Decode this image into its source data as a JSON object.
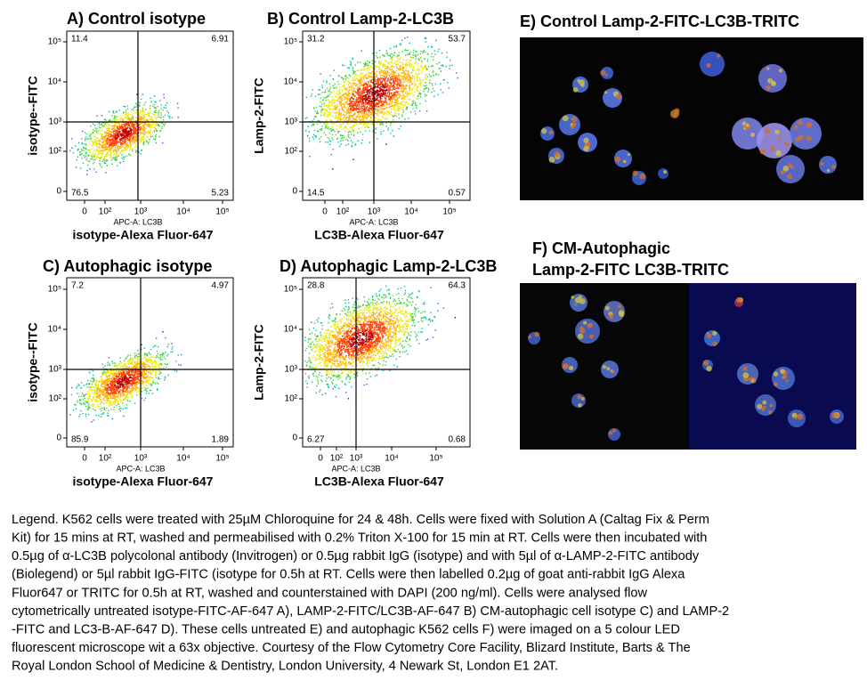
{
  "panels": [
    {
      "title": "A) Control isotype",
      "y_label": "isotype--FITC",
      "x_sublabel": "APC-A: LC3B",
      "x_label": "isotype-Alexa Fluor-647",
      "quadrants": [
        11.4,
        6.91,
        76.5,
        5.23
      ],
      "yticks": [
        "10⁵",
        "10⁴",
        "10³",
        "10²",
        "0"
      ],
      "xticks": [
        "0",
        "10²",
        "10³",
        "10⁴",
        "10⁵"
      ]
    },
    {
      "title": "B) Control  Lamp-2-LC3B",
      "y_label": "Lamp-2-FITC",
      "x_sublabel": "APC-A: LC3B",
      "x_label": "LC3B-Alexa Fluor-647",
      "quadrants": [
        31.2,
        53.7,
        14.5,
        0.57
      ],
      "yticks": [
        "10⁵",
        "10⁴",
        "10³",
        "10²",
        "0"
      ],
      "xticks": [
        "0",
        "10²",
        "10³",
        "10⁴",
        "10⁵"
      ]
    },
    {
      "title": "C) Autophagic isotype",
      "y_label": "isotype--FITC",
      "x_sublabel": "APC-A: LC3B",
      "x_label": "isotype-Alexa Fluor-647",
      "quadrants": [
        7.2,
        4.97,
        85.9,
        1.89
      ],
      "yticks": [
        "10⁵",
        "10⁴",
        "10³",
        "10²",
        "0"
      ],
      "xticks": [
        "0",
        "10²",
        "10³",
        "10⁴",
        "10⁵"
      ]
    },
    {
      "title": "D) Autophagic Lamp-2-LC3B",
      "y_label": "Lamp-2-FITC",
      "x_sublabel": "APC-A: LC3B",
      "x_label": "LC3B-Alexa Fluor-647",
      "quadrants": [
        28.8,
        64.3,
        6.27,
        0.68
      ],
      "yticks": [
        "10⁵",
        "10⁴",
        "10³",
        "10²",
        "0"
      ],
      "xticks": [
        "0",
        "10²",
        "10³",
        "10⁴",
        "10⁵"
      ]
    }
  ],
  "images": [
    {
      "title": "E) Control   Lamp-2-FITC-LC3B-TRITC"
    },
    {
      "title_lines": [
        "F) CM-Autophagic",
        "Lamp-2-FITC LC3B-TRITC"
      ]
    }
  ],
  "legend": {
    "lines": [
      "Legend. K562 cells were treated with 25µM Chloroquine for 24 & 48h. Cells were fixed with Solution A (Caltag Fix & Perm",
      "Kit) for 15 mins at RT, washed and permeabilised with 0.2% Triton X-100 for 15 min at RT. Cells were then incubated with",
      "0.5µg of α-LC3B polycolonal antibody (Invitrogen) or 0.5µg rabbit IgG (isotype) and with 5µl of α-LAMP-2-FITC antibody",
      "(Biolegend) or 5µl rabbit IgG-FITC (isotype for 0.5h at RT. Cells were then labelled 0.2µg of goat anti-rabbit IgG Alexa",
      "Fluor647 or TRITC for 0.5h at RT, washed and counterstained with DAPI (200 ng/ml). Cells were analysed flow",
      "cytometrically untreated isotype-FITC-AF-647 A), LAMP-2-FITC/LC3B-AF-647 B) CM-autophagic cell isotype C) and LAMP-2",
      "-FITC and LC3-B-AF-647 D). These cells untreated E) and autophagic K562 cells F) were imaged on a 5 colour LED",
      "fluorescent microscope wit a 63x objective. Courtesy of the Flow Cytometry Core Facility, Blizard Institute, Barts & The",
      "Royal London School of Medicine & Dentistry, London University, 4 Newark St, London E1 2AT."
    ]
  }
}
